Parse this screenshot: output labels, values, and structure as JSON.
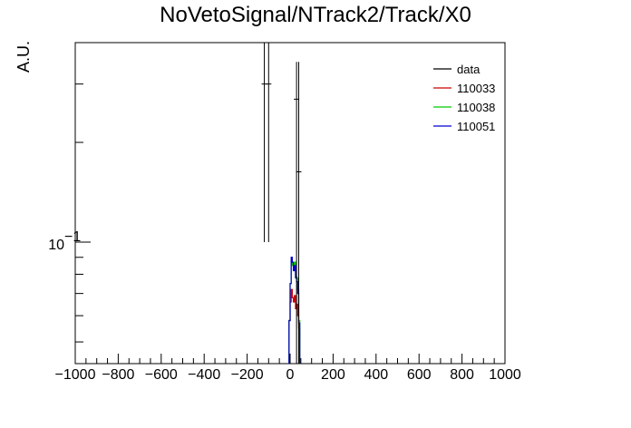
{
  "chart_data": {
    "type": "step",
    "title": "NoVetoSignal/NTrack2/Track/X0",
    "xlabel": "",
    "ylabel": "A.U.",
    "xlim": [
      -1000,
      1000
    ],
    "ylim": [
      0.043,
      0.4
    ],
    "ylog": true,
    "grid": false,
    "legend_position": "top-right",
    "x_ticks": [
      -1000,
      -800,
      -600,
      -400,
      -200,
      0,
      200,
      400,
      600,
      800,
      1000
    ],
    "x_tick_labels": [
      "−1000",
      "−800",
      "−600",
      "−400",
      "−200",
      "0",
      "200",
      "400",
      "600",
      "800",
      "1000"
    ],
    "y_major_ticks": [
      0.1
    ],
    "y_tick_label": "10",
    "y_tick_label_exponent": "−1",
    "y_minor_ticks": [
      0.05,
      0.06,
      0.07,
      0.08,
      0.09,
      0.2,
      0.3
    ],
    "series": [
      {
        "name": "data",
        "color": "#000000",
        "style": "points",
        "points": [
          {
            "x": -120,
            "y": 0.3,
            "ylow": 0.1,
            "yhigh": 0.4
          },
          {
            "x": -100,
            "y": 0.3,
            "ylow": 0.1,
            "yhigh": 0.4
          },
          {
            "x": 30,
            "y": 0.27,
            "ylow": 0.043,
            "yhigh": 0.35
          },
          {
            "x": 40,
            "y": 0.163,
            "ylow": 0.043,
            "yhigh": 0.35
          }
        ]
      },
      {
        "name": "110033",
        "color": "#cc0000",
        "style": "step",
        "edges": [
          -5,
          0,
          5,
          10,
          15,
          20,
          25,
          30,
          35,
          40,
          45
        ],
        "values": [
          0.058,
          0.066,
          0.072,
          0.068,
          0.066,
          0.069,
          0.063,
          0.065,
          0.06,
          0.055
        ]
      },
      {
        "name": "110038",
        "color": "#00cc00",
        "style": "step",
        "edges": [
          -5,
          0,
          5,
          10,
          15,
          20,
          25,
          30,
          35,
          40,
          45
        ],
        "values": [
          0.058,
          0.075,
          0.088,
          0.085,
          0.083,
          0.087,
          0.079,
          0.078,
          0.072,
          0.058
        ]
      },
      {
        "name": "110051",
        "color": "#0000cc",
        "style": "step",
        "edges": [
          -5,
          0,
          5,
          10,
          15,
          20,
          25,
          30,
          35,
          40,
          45
        ],
        "values": [
          0.058,
          0.075,
          0.09,
          0.087,
          0.082,
          0.085,
          0.078,
          0.076,
          0.07,
          0.057
        ]
      }
    ]
  }
}
